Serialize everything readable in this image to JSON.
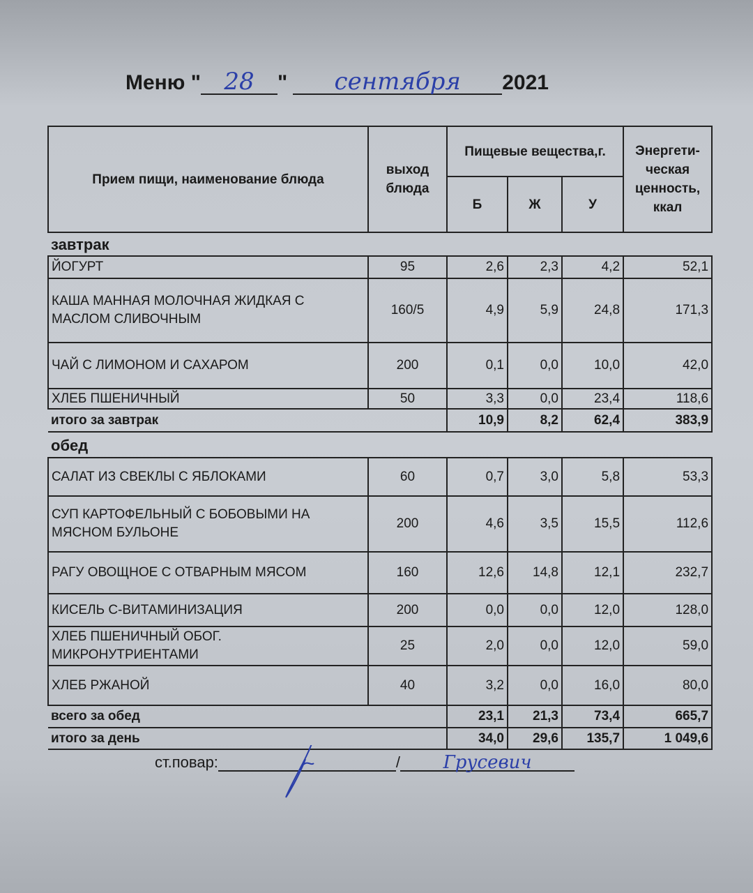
{
  "title": {
    "prefix": "Меню \"",
    "day": "28",
    "mid": "\"",
    "month": "сентября",
    "year": "2021"
  },
  "header": {
    "dish": "Прием пищи, наименование блюда",
    "yield": "выход блюда",
    "nutrients": "Пищевые вещества,г.",
    "b": "Б",
    "zh": "Ж",
    "u": "У",
    "energy": "Энергети-ческая ценность, ккал"
  },
  "breakfast": {
    "label": "завтрак",
    "rows": [
      {
        "name": "ЙОГУРТ",
        "yield": "95",
        "b": "2,6",
        "zh": "2,3",
        "u": "4,2",
        "kcal": "52,1"
      },
      {
        "name": "КАША МАННАЯ МОЛОЧНАЯ ЖИДКАЯ С МАСЛОМ СЛИВОЧНЫМ",
        "yield": "160/5",
        "b": "4,9",
        "zh": "5,9",
        "u": "24,8",
        "kcal": "171,3"
      },
      {
        "name": "ЧАЙ С ЛИМОНОМ И САХАРОМ",
        "yield": "200",
        "b": "0,1",
        "zh": "0,0",
        "u": "10,0",
        "kcal": "42,0"
      },
      {
        "name": "ХЛЕБ ПШЕНИЧНЫЙ",
        "yield": "50",
        "b": "3,3",
        "zh": "0,0",
        "u": "23,4",
        "kcal": "118,6"
      }
    ],
    "total": {
      "label": "итого за завтрак",
      "b": "10,9",
      "zh": "8,2",
      "u": "62,4",
      "kcal": "383,9"
    }
  },
  "lunch": {
    "label": "обед",
    "rows": [
      {
        "name": "САЛАТ ИЗ СВЕКЛЫ  С ЯБЛОКАМИ",
        "yield": "60",
        "b": "0,7",
        "zh": "3,0",
        "u": "5,8",
        "kcal": "53,3"
      },
      {
        "name": "СУП КАРТОФЕЛЬНЫЙ С БОБОВЫМИ НА МЯСНОМ БУЛЬОНЕ",
        "yield": "200",
        "b": "4,6",
        "zh": "3,5",
        "u": "15,5",
        "kcal": "112,6"
      },
      {
        "name": "РАГУ ОВОЩНОЕ С ОТВАРНЫМ  МЯСОМ",
        "yield": "160",
        "b": "12,6",
        "zh": "14,8",
        "u": "12,1",
        "kcal": "232,7"
      },
      {
        "name": "КИСЕЛЬ С-ВИТАМИНИЗАЦИЯ",
        "yield": "200",
        "b": "0,0",
        "zh": "0,0",
        "u": "12,0",
        "kcal": "128,0"
      },
      {
        "name": "ХЛЕБ ПШЕНИЧНЫЙ ОБОГ. МИКРОНУТРИЕНТАМИ",
        "yield": "25",
        "b": "2,0",
        "zh": "0,0",
        "u": "12,0",
        "kcal": "59,0"
      },
      {
        "name": "ХЛЕБ РЖАНОЙ",
        "yield": "40",
        "b": "3,2",
        "zh": "0,0",
        "u": "16,0",
        "kcal": "80,0"
      }
    ],
    "total": {
      "label": "всего за обед",
      "b": "23,1",
      "zh": "21,3",
      "u": "73,4",
      "kcal": "665,7"
    }
  },
  "day_total": {
    "label": "итого за день",
    "b": "34,0",
    "zh": "29,6",
    "u": "135,7",
    "kcal": "1 049,6"
  },
  "signature": {
    "label": "ст.повар:",
    "separator": "/",
    "name": "Грусевич"
  },
  "colors": {
    "ink": "#2b3fa8",
    "paper": "#c9cdd3"
  }
}
